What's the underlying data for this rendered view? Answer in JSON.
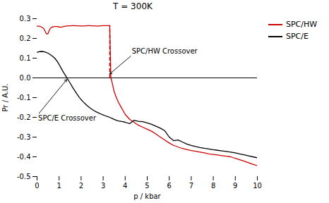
{
  "chart_data": {
    "type": "line",
    "title": "T = 300K",
    "xlabel": "p / kbar",
    "ylabel": "Pr / A.U.",
    "xlim": [
      0,
      10
    ],
    "ylim": [
      -0.5,
      0.3
    ],
    "xticks": [
      0,
      1,
      2,
      3,
      4,
      5,
      6,
      7,
      8,
      9,
      10
    ],
    "yticks": [
      -0.5,
      -0.4,
      -0.3,
      -0.2,
      -0.1,
      {
        "value": 0.0,
        "label": "0.0"
      },
      0.1,
      0.2,
      0.3
    ],
    "grid": false,
    "legend": "right",
    "series": [
      {
        "name": "SPC/HW",
        "color": "#cc0000",
        "x": [
          0.0,
          0.1,
          0.2,
          0.3,
          0.35,
          0.4,
          0.45,
          0.5,
          0.55,
          0.6,
          0.65,
          0.7,
          0.8,
          0.9,
          1.0,
          1.1,
          1.2,
          1.3,
          1.4,
          1.5,
          1.6,
          1.7,
          1.8,
          1.9,
          2.0,
          2.1,
          2.2,
          2.3,
          2.4,
          2.5,
          2.6,
          2.7,
          2.8,
          2.9,
          3.0,
          3.1,
          3.2,
          3.25,
          3.3,
          3.35,
          3.4,
          3.5,
          3.6,
          3.7,
          3.8,
          3.9,
          4.0,
          4.2,
          4.4,
          4.6,
          4.8,
          5.0,
          5.2,
          5.4,
          5.6,
          5.8,
          6.0,
          6.2,
          6.4,
          6.6,
          6.8,
          7.0,
          7.2,
          7.4,
          7.6,
          7.8,
          8.0,
          8.2,
          8.4,
          8.6,
          8.8,
          9.0,
          9.2,
          9.4,
          9.6,
          9.8,
          10.0
        ],
        "values": [
          0.262,
          0.262,
          0.258,
          0.25,
          0.24,
          0.228,
          0.222,
          0.225,
          0.24,
          0.25,
          0.255,
          0.258,
          0.26,
          0.26,
          0.258,
          0.257,
          0.26,
          0.262,
          0.264,
          0.264,
          0.265,
          0.265,
          0.264,
          0.264,
          0.263,
          0.263,
          0.264,
          0.265,
          0.265,
          0.264,
          0.264,
          0.263,
          0.263,
          0.264,
          0.265,
          0.265,
          0.265,
          0.265,
          0.265,
          0.0,
          -0.02,
          -0.07,
          -0.1,
          -0.125,
          -0.145,
          -0.165,
          -0.185,
          -0.21,
          -0.225,
          -0.24,
          -0.25,
          -0.26,
          -0.27,
          -0.285,
          -0.3,
          -0.315,
          -0.33,
          -0.342,
          -0.35,
          -0.358,
          -0.363,
          -0.368,
          -0.372,
          -0.376,
          -0.38,
          -0.385,
          -0.388,
          -0.391,
          -0.394,
          -0.397,
          -0.4,
          -0.408,
          -0.415,
          -0.422,
          -0.43,
          -0.438,
          -0.445
        ]
      },
      {
        "name": "SPC/E",
        "color": "#000000",
        "x": [
          0.0,
          0.1,
          0.2,
          0.3,
          0.4,
          0.5,
          0.6,
          0.7,
          0.8,
          0.9,
          1.0,
          1.1,
          1.2,
          1.3,
          1.4,
          1.5,
          1.6,
          1.7,
          1.8,
          1.9,
          2.0,
          2.1,
          2.2,
          2.3,
          2.4,
          2.5,
          2.6,
          2.7,
          2.8,
          2.9,
          3.0,
          3.1,
          3.2,
          3.3,
          3.4,
          3.5,
          3.6,
          3.7,
          3.8,
          3.9,
          4.0,
          4.2,
          4.4,
          4.6,
          4.8,
          5.0,
          5.2,
          5.4,
          5.6,
          5.8,
          6.0,
          6.2,
          6.4,
          6.6,
          6.8,
          7.0,
          7.2,
          7.4,
          7.6,
          7.8,
          8.0,
          8.2,
          8.4,
          8.6,
          8.8,
          9.0,
          9.2,
          9.4,
          9.6,
          9.8,
          10.0
        ],
        "values": [
          0.13,
          0.133,
          0.134,
          0.133,
          0.13,
          0.125,
          0.118,
          0.11,
          0.1,
          0.086,
          0.068,
          0.048,
          0.028,
          0.01,
          -0.008,
          -0.026,
          -0.045,
          -0.063,
          -0.08,
          -0.096,
          -0.11,
          -0.122,
          -0.133,
          -0.143,
          -0.152,
          -0.16,
          -0.167,
          -0.173,
          -0.178,
          -0.183,
          -0.188,
          -0.192,
          -0.196,
          -0.2,
          -0.205,
          -0.21,
          -0.215,
          -0.218,
          -0.22,
          -0.222,
          -0.225,
          -0.232,
          -0.215,
          -0.22,
          -0.222,
          -0.228,
          -0.235,
          -0.245,
          -0.255,
          -0.268,
          -0.3,
          -0.318,
          -0.315,
          -0.325,
          -0.335,
          -0.342,
          -0.348,
          -0.353,
          -0.357,
          -0.36,
          -0.364,
          -0.367,
          -0.37,
          -0.373,
          -0.376,
          -0.38,
          -0.385,
          -0.39,
          -0.395,
          -0.4,
          -0.405
        ]
      }
    ],
    "zero_line": {
      "y": 0,
      "color": "#000000"
    },
    "crossover_line": {
      "x": 3.3,
      "y_from": 0.0,
      "y_to": 0.265,
      "color": "#cc0000",
      "line_style": "dashed"
    },
    "annotations": [
      {
        "text": "SPC/HW Crossover",
        "x": 3.3,
        "y": 0.02,
        "text_x": 4.3,
        "text_y": 0.115
      },
      {
        "text": "SPC/E Crossover",
        "x": 1.35,
        "y": -0.008,
        "text_x": 0.05,
        "text_y": -0.185
      }
    ]
  }
}
